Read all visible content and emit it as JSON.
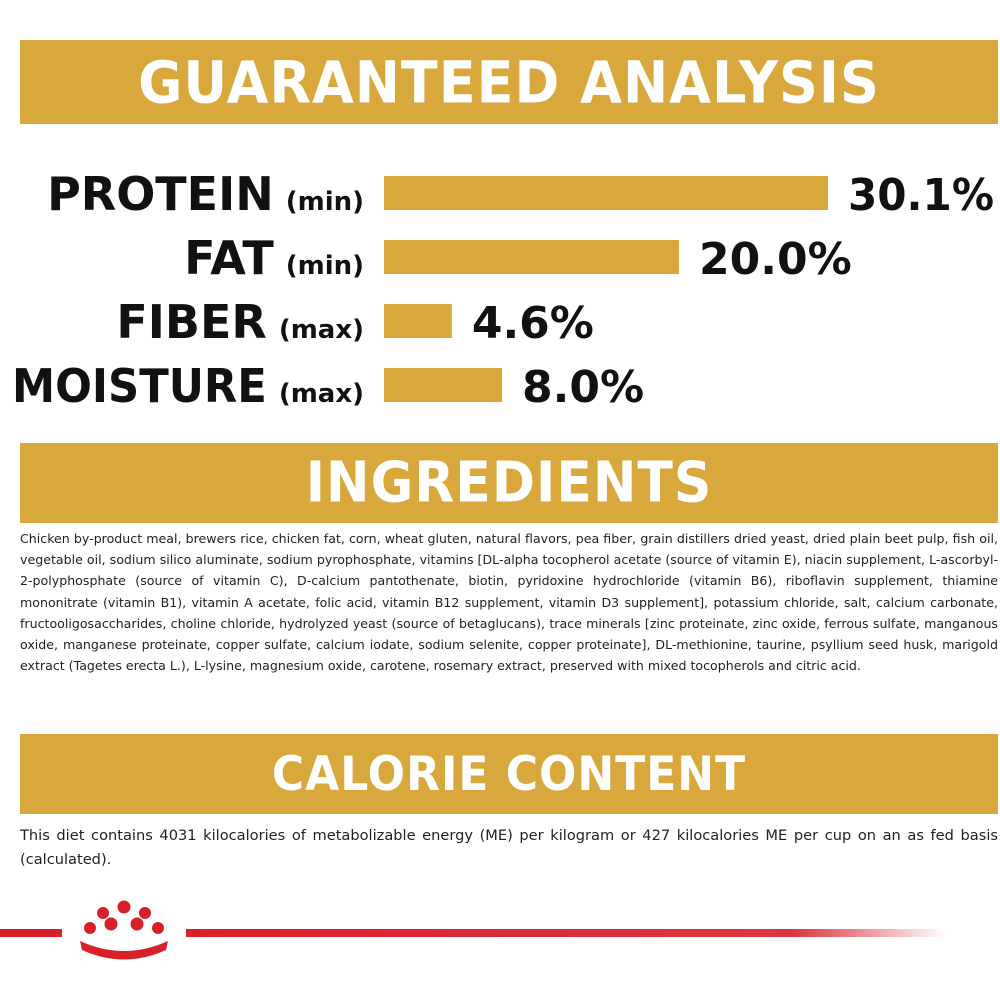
{
  "sections": {
    "guaranteed_analysis": "GUARANTEED ANALYSIS",
    "ingredients": "INGREDIENTS",
    "calorie_content": "CALORIE CONTENT"
  },
  "chart_data": {
    "type": "bar",
    "orientation": "horizontal",
    "title": "",
    "categories": [
      "PROTEIN",
      "FAT",
      "FIBER",
      "MOISTURE"
    ],
    "qualifiers": [
      "(min)",
      "(min)",
      "(max)",
      "(max)"
    ],
    "values": [
      30.1,
      20.0,
      4.6,
      8.0
    ],
    "value_labels": [
      "30.1%",
      "20.0%",
      "4.6%",
      "8.0%"
    ],
    "unit": "%",
    "xlim": [
      0,
      30.1
    ],
    "grid": false,
    "legend": "none",
    "bar_color": "#d9a83d"
  },
  "ingredients_text": "Chicken by-product meal, brewers rice, chicken fat, corn, wheat gluten, natural flavors, pea fiber, grain distillers dried yeast, dried plain beet pulp, fish oil, vegetable oil, sodium silico aluminate, sodium pyrophosphate, vitamins [DL-alpha tocopherol acetate (source of vitamin E), niacin supplement, L-ascorbyl-2-polyphosphate (source of vitamin C), D-calcium pantothenate, biotin, pyridoxine hydrochloride (vitamin B6), riboflavin supplement, thiamine mononitrate (vitamin B1), vitamin A acetate, folic acid, vitamin B12 supplement, vitamin D3 supplement], potassium chloride, salt, calcium carbonate, fructooligosaccharides, choline chloride, hydrolyzed yeast (source of betaglucans), trace minerals [zinc proteinate, zinc oxide, ferrous sulfate, manganous oxide, manganese proteinate, copper sulfate, calcium iodate, sodium selenite, copper proteinate], DL-methionine, taurine, psyllium seed husk, marigold extract (Tagetes erecta L.), L-lysine, magnesium oxide, carotene, rosemary extract, preserved with mixed tocopherols and citric acid.",
  "calorie_text": "This diet contains 4031 kilocalories of metabolizable energy (ME) per kilogram or 427 kilocalories ME per cup on an as fed basis (calculated).",
  "colors": {
    "accent": "#d9a83d",
    "brand_red": "#d8202a"
  },
  "icons": {
    "logo": "royal-crown-icon"
  }
}
